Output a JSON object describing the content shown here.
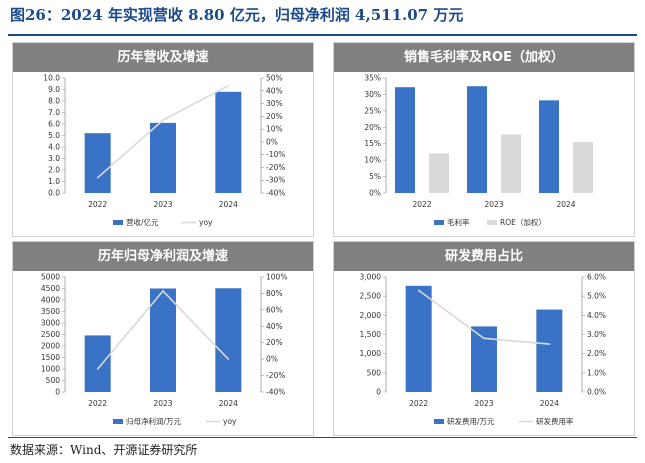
{
  "figure": {
    "title": "图26：2024 年实现营收 8.80 亿元，归母净利润 4,511.07 万元",
    "source": "数据来源：Wind、开源证券研究所"
  },
  "chart_data": [
    {
      "type": "bar",
      "title": "历年营收及增速",
      "categories": [
        "2022",
        "2023",
        "2024"
      ],
      "series": [
        {
          "name": "营收/亿元",
          "kind": "bar",
          "axis": "left",
          "color": "#3a73c6",
          "values": [
            5.2,
            6.1,
            8.8
          ]
        },
        {
          "name": "yoy",
          "kind": "line",
          "axis": "right",
          "color": "#d9d9d9",
          "values": [
            -28,
            17,
            44
          ]
        }
      ],
      "y_left": {
        "min": 0,
        "max": 10,
        "step": 1,
        "ticks": [
          "0.0",
          "1.0",
          "2.0",
          "3.0",
          "4.0",
          "5.0",
          "6.0",
          "7.0",
          "8.0",
          "9.0",
          "10.0"
        ]
      },
      "y_right": {
        "min": -40,
        "max": 50,
        "step": 10,
        "ticks": [
          "-40%",
          "-30%",
          "-20%",
          "-10%",
          "0%",
          "10%",
          "20%",
          "30%",
          "40%",
          "50%"
        ]
      },
      "legend": "bottom",
      "grid": false
    },
    {
      "type": "bar",
      "title": "销售毛利率及ROE（加权）",
      "categories": [
        "2022",
        "2023",
        "2024"
      ],
      "series": [
        {
          "name": "毛利率",
          "kind": "bar",
          "axis": "left",
          "color": "#3a73c6",
          "values": [
            32.2,
            32.5,
            28.2
          ]
        },
        {
          "name": "ROE（加权）",
          "kind": "bar",
          "axis": "left",
          "color": "#d9d9d9",
          "values": [
            12.0,
            17.8,
            15.5
          ]
        }
      ],
      "y_left": {
        "min": 0,
        "max": 35,
        "step": 5,
        "ticks": [
          "0%",
          "5%",
          "10%",
          "15%",
          "20%",
          "25%",
          "30%",
          "35%"
        ]
      },
      "legend": "bottom",
      "grid": false
    },
    {
      "type": "bar",
      "title": "历年归母净利润及增速",
      "categories": [
        "2022",
        "2023",
        "2024"
      ],
      "series": [
        {
          "name": "归母净利润/万元",
          "kind": "bar",
          "axis": "left",
          "color": "#3a73c6",
          "values": [
            2460,
            4500,
            4511.07
          ]
        },
        {
          "name": "yoy",
          "kind": "line",
          "axis": "right",
          "color": "#d9d9d9",
          "values": [
            -12,
            83,
            0
          ]
        }
      ],
      "y_left": {
        "min": 0,
        "max": 5000,
        "step": 500,
        "ticks": [
          "0",
          "500",
          "1000",
          "1500",
          "2000",
          "2500",
          "3000",
          "3500",
          "4000",
          "4500",
          "5000"
        ]
      },
      "y_right": {
        "min": -40,
        "max": 100,
        "step": 20,
        "ticks": [
          "-40%",
          "-20%",
          "0%",
          "20%",
          "40%",
          "60%",
          "80%",
          "100%"
        ]
      },
      "legend": "bottom",
      "grid": false
    },
    {
      "type": "bar",
      "title": "研发费用占比",
      "categories": [
        "2022",
        "2023",
        "2024"
      ],
      "series": [
        {
          "name": "研发费用/万元",
          "kind": "bar",
          "axis": "left",
          "color": "#3a73c6",
          "values": [
            2770,
            1710,
            2150
          ]
        },
        {
          "name": "研发费用率",
          "kind": "line",
          "axis": "right",
          "color": "#d9d9d9",
          "values": [
            5.3,
            2.8,
            2.5
          ]
        }
      ],
      "y_left": {
        "min": 0,
        "max": 3000,
        "step": 500,
        "ticks": [
          "0",
          "500",
          "1,000",
          "1,500",
          "2,000",
          "2,500",
          "3,000"
        ]
      },
      "y_right": {
        "min": 0,
        "max": 6,
        "step": 1,
        "ticks": [
          "0.0%",
          "1.0%",
          "2.0%",
          "3.0%",
          "4.0%",
          "5.0%",
          "6.0%"
        ]
      },
      "legend": "bottom",
      "grid": false
    }
  ]
}
